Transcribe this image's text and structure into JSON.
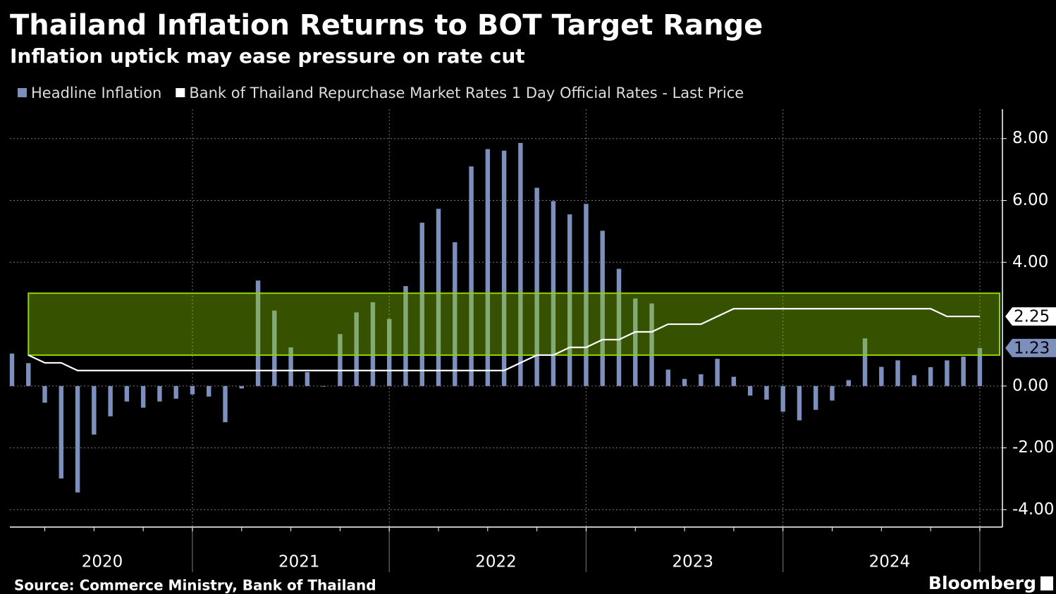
{
  "chart_data": {
    "type": "bar",
    "title": "Thailand Inflation Returns to BOT Target Range",
    "subtitle": "Inflation uptick may ease pressure on rate cut",
    "source": "Source: Commerce Ministry, Bank of Thailand",
    "brand": "Bloomberg",
    "x_labels": [
      "2020",
      "2021",
      "2022",
      "2023",
      "2024"
    ],
    "series": [
      {
        "name": "Headline Inflation",
        "color": "#7d90bd",
        "type": "bar",
        "values": [
          1.05,
          0.74,
          -0.54,
          -2.99,
          -3.44,
          -1.57,
          -0.98,
          -0.5,
          -0.7,
          -0.5,
          -0.41,
          -0.27,
          -0.34,
          -1.17,
          -0.08,
          3.41,
          2.44,
          1.25,
          0.45,
          -0.02,
          1.68,
          2.38,
          2.71,
          2.17,
          3.23,
          5.28,
          5.73,
          4.65,
          7.1,
          7.66,
          7.61,
          7.86,
          6.41,
          5.98,
          5.55,
          5.89,
          5.02,
          3.79,
          2.83,
          2.67,
          0.53,
          0.23,
          0.38,
          0.88,
          0.3,
          -0.31,
          -0.44,
          -0.83,
          -1.11,
          -0.77,
          -0.47,
          0.19,
          1.54,
          0.62,
          0.83,
          0.35,
          0.61,
          0.83,
          0.95,
          1.23
        ]
      },
      {
        "name": "Bank of Thailand Repurchase Market Rates 1 Day Official Rates - Last Price",
        "color": "#ffffff",
        "type": "line",
        "values": [
          null,
          1.0,
          0.75,
          0.75,
          0.5,
          0.5,
          0.5,
          0.5,
          0.5,
          0.5,
          0.5,
          0.5,
          0.5,
          0.5,
          0.5,
          0.5,
          0.5,
          0.5,
          0.5,
          0.5,
          0.5,
          0.5,
          0.5,
          0.5,
          0.5,
          0.5,
          0.5,
          0.5,
          0.5,
          0.5,
          0.5,
          0.75,
          1.0,
          1.0,
          1.25,
          1.25,
          1.5,
          1.5,
          1.75,
          1.75,
          2.0,
          2.0,
          2.0,
          2.25,
          2.5,
          2.5,
          2.5,
          2.5,
          2.5,
          2.5,
          2.5,
          2.5,
          2.5,
          2.5,
          2.5,
          2.5,
          2.5,
          2.25,
          2.25,
          2.25
        ]
      }
    ],
    "target_band": [
      1,
      3
    ],
    "band_color": "#8fd400",
    "ylim": [
      -4.56,
      8.95
    ],
    "yticks": [
      {
        "value": -4,
        "label": "-4.00"
      },
      {
        "value": -2,
        "label": "-2.00"
      },
      {
        "value": 0,
        "label": "0.00"
      },
      {
        "value": 4,
        "label": "4.00"
      },
      {
        "value": 6,
        "label": "6.00"
      },
      {
        "value": 8,
        "label": "8.00"
      }
    ],
    "grid": true
  }
}
